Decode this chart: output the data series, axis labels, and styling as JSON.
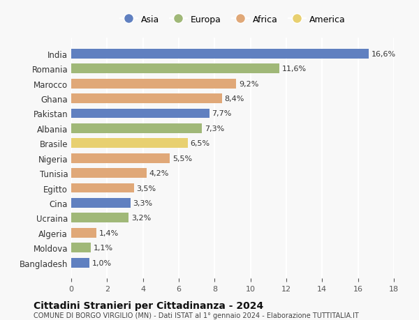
{
  "countries": [
    "India",
    "Romania",
    "Marocco",
    "Ghana",
    "Pakistan",
    "Albania",
    "Brasile",
    "Nigeria",
    "Tunisia",
    "Egitto",
    "Cina",
    "Ucraina",
    "Algeria",
    "Moldova",
    "Bangladesh"
  ],
  "values": [
    16.6,
    11.6,
    9.2,
    8.4,
    7.7,
    7.3,
    6.5,
    5.5,
    4.2,
    3.5,
    3.3,
    3.2,
    1.4,
    1.1,
    1.0
  ],
  "labels": [
    "16,6%",
    "11,6%",
    "9,2%",
    "8,4%",
    "7,7%",
    "7,3%",
    "6,5%",
    "5,5%",
    "4,2%",
    "3,5%",
    "3,3%",
    "3,2%",
    "1,4%",
    "1,1%",
    "1,0%"
  ],
  "continents": [
    "Asia",
    "Europa",
    "Africa",
    "Africa",
    "Asia",
    "Europa",
    "America",
    "Africa",
    "Africa",
    "Africa",
    "Asia",
    "Europa",
    "Africa",
    "Europa",
    "Asia"
  ],
  "continent_colors": {
    "Asia": "#6080c0",
    "Europa": "#a0b878",
    "Africa": "#e0a878",
    "America": "#e8d070"
  },
  "legend_order": [
    "Asia",
    "Europa",
    "Africa",
    "America"
  ],
  "title": "Cittadini Stranieri per Cittadinanza - 2024",
  "subtitle": "COMUNE DI BORGO VIRGILIO (MN) - Dati ISTAT al 1° gennaio 2024 - Elaborazione TUTTITALIA.IT",
  "xlim": [
    0,
    18
  ],
  "xticks": [
    0,
    2,
    4,
    6,
    8,
    10,
    12,
    14,
    16,
    18
  ],
  "background_color": "#f8f8f8",
  "grid_color": "#ffffff",
  "bar_height": 0.65
}
